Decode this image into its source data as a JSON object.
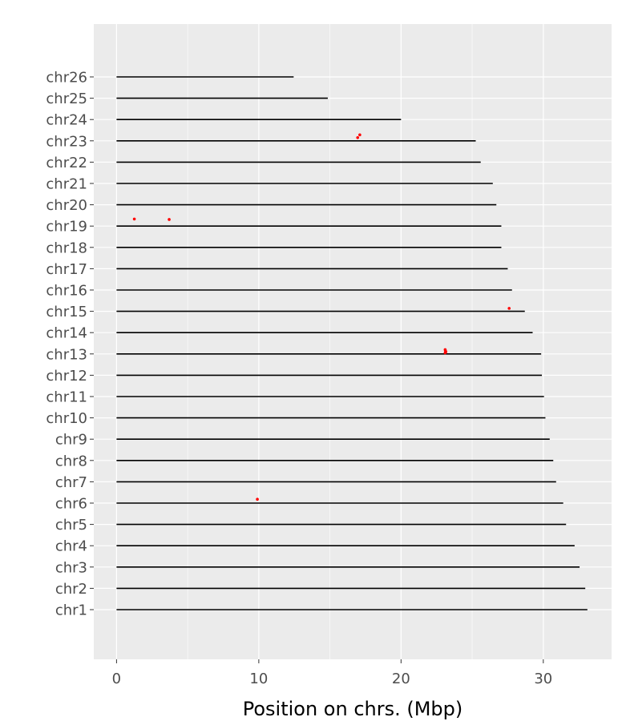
{
  "chart_data": {
    "type": "scatter",
    "xlabel": "Position on chrs. (Mbp)",
    "ylabel": "",
    "xlim": [
      -1.6,
      34.8
    ],
    "xticks": [
      0,
      10,
      20,
      30
    ],
    "grid": true,
    "colors": {
      "panel": "#ebebeb",
      "grid": "#ffffff",
      "chromosome": "#000000",
      "marker": "#ff0000"
    },
    "chromosomes": [
      {
        "name": "chr1",
        "length": 33.1
      },
      {
        "name": "chr2",
        "length": 32.95
      },
      {
        "name": "chr3",
        "length": 32.55
      },
      {
        "name": "chr4",
        "length": 32.2
      },
      {
        "name": "chr5",
        "length": 31.6
      },
      {
        "name": "chr6",
        "length": 31.4
      },
      {
        "name": "chr7",
        "length": 30.9
      },
      {
        "name": "chr8",
        "length": 30.7
      },
      {
        "name": "chr9",
        "length": 30.45
      },
      {
        "name": "chr10",
        "length": 30.15
      },
      {
        "name": "chr11",
        "length": 30.05
      },
      {
        "name": "chr12",
        "length": 29.9
      },
      {
        "name": "chr13",
        "length": 29.85
      },
      {
        "name": "chr14",
        "length": 29.25
      },
      {
        "name": "chr15",
        "length": 28.7
      },
      {
        "name": "chr16",
        "length": 27.8
      },
      {
        "name": "chr17",
        "length": 27.5
      },
      {
        "name": "chr18",
        "length": 27.05
      },
      {
        "name": "chr19",
        "length": 27.05
      },
      {
        "name": "chr20",
        "length": 26.7
      },
      {
        "name": "chr21",
        "length": 26.45
      },
      {
        "name": "chr22",
        "length": 25.6
      },
      {
        "name": "chr23",
        "length": 25.25
      },
      {
        "name": "chr24",
        "length": 20.0
      },
      {
        "name": "chr25",
        "length": 14.85
      },
      {
        "name": "chr26",
        "length": 12.45
      }
    ],
    "markers": [
      {
        "chr": "chr23",
        "position": 16.95,
        "offset": 0.15
      },
      {
        "chr": "chr23",
        "position": 17.1,
        "offset": 0.28
      },
      {
        "chr": "chr19",
        "position": 1.25,
        "offset": 0.33
      },
      {
        "chr": "chr19",
        "position": 3.7,
        "offset": 0.31
      },
      {
        "chr": "chr15",
        "position": 27.6,
        "offset": 0.14
      },
      {
        "chr": "chr13",
        "position": 23.1,
        "offset": 0.2
      },
      {
        "chr": "chr13",
        "position": 23.12,
        "offset": 0.15
      },
      {
        "chr": "chr13",
        "position": 23.15,
        "offset": 0.1
      },
      {
        "chr": "chr13",
        "position": 23.1,
        "offset": 0.05
      },
      {
        "chr": "chr6",
        "position": 9.9,
        "offset": 0.18
      }
    ]
  }
}
